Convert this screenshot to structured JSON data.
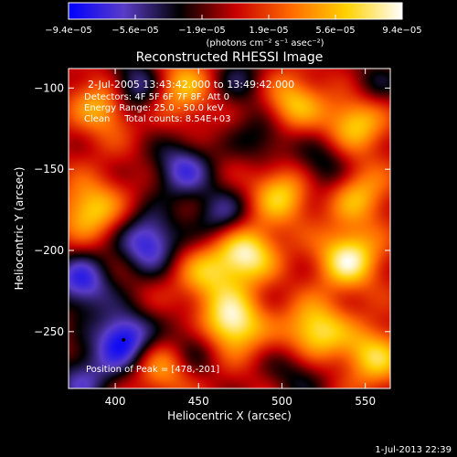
{
  "chart_data": {
    "type": "heatmap",
    "title": "Reconstructed RHESSI Image",
    "xlabel": "Heliocentric X (arcsec)",
    "ylabel": "Heliocentric Y (arcsec)",
    "xlim": [
      372,
      565
    ],
    "ylim": [
      -285,
      -88
    ],
    "x_ticks": [
      400,
      450,
      500,
      550
    ],
    "x_tick_labels": [
      "400",
      "450",
      "500",
      "550"
    ],
    "y_ticks": [
      -100,
      -150,
      -200,
      -250
    ],
    "y_tick_labels": [
      "−100",
      "−150",
      "−200",
      "−250"
    ],
    "colorbar": {
      "range": [
        -9.4e-05,
        9.4e-05
      ],
      "tick_labels": [
        "−9.4e−05",
        "−5.6e−05",
        "−1.9e−05",
        "1.9e−05",
        "5.6e−05",
        "9.4e−05"
      ],
      "unit_label": "(photons cm⁻² s⁻¹ asec⁻²)",
      "colormap": [
        "#0000ff",
        "#5a3cc8",
        "#000000",
        "#c80000",
        "#ff6a00",
        "#ffd200",
        "#ffffff"
      ]
    },
    "annotations": [
      "2-Jul-2005 13:43:42.000 to 13:49:42.000",
      "Detectors: 4F 5F 6F 7F 8F, Att 0",
      "Energy Range: 25.0 - 50.0 keV",
      "Clean     Total counts: 8.54E+03"
    ],
    "peak_label": "Position of Peak = [478,-201]",
    "peak": [
      478,
      -201
    ],
    "blobs": [
      {
        "x": 470,
        "y": -245,
        "v": 1.0
      },
      {
        "x": 478,
        "y": -201,
        "v": 0.95
      },
      {
        "x": 540,
        "y": -205,
        "v": 0.9
      },
      {
        "x": 520,
        "y": -250,
        "v": 0.85
      },
      {
        "x": 500,
        "y": -165,
        "v": 0.7
      },
      {
        "x": 545,
        "y": -120,
        "v": 0.75
      },
      {
        "x": 505,
        "y": -110,
        "v": 0.65
      },
      {
        "x": 430,
        "y": -270,
        "v": 0.6
      },
      {
        "x": 385,
        "y": -175,
        "v": 0.7
      },
      {
        "x": 395,
        "y": -110,
        "v": 0.75
      },
      {
        "x": 440,
        "y": -100,
        "v": 0.6
      },
      {
        "x": 455,
        "y": -215,
        "v": 0.55
      },
      {
        "x": 555,
        "y": -265,
        "v": 0.7
      },
      {
        "x": 545,
        "y": -165,
        "v": 0.6
      },
      {
        "x": 410,
        "y": -100,
        "v": -0.8
      },
      {
        "x": 405,
        "y": -255,
        "v": -1.0
      },
      {
        "x": 420,
        "y": -195,
        "v": -0.85
      },
      {
        "x": 440,
        "y": -150,
        "v": -0.7
      },
      {
        "x": 465,
        "y": -180,
        "v": -0.6
      },
      {
        "x": 380,
        "y": -220,
        "v": -0.8
      },
      {
        "x": 445,
        "y": -260,
        "v": -0.5
      },
      {
        "x": 490,
        "y": -130,
        "v": -0.45
      },
      {
        "x": 525,
        "y": -150,
        "v": -0.5
      },
      {
        "x": 555,
        "y": -100,
        "v": -0.4
      },
      {
        "x": 510,
        "y": -275,
        "v": -0.4
      },
      {
        "x": 380,
        "y": -280,
        "v": -0.6
      },
      {
        "x": 475,
        "y": -95,
        "v": -0.4
      }
    ]
  },
  "footer": {
    "timestamp": "1-Jul-2013 22:39"
  }
}
